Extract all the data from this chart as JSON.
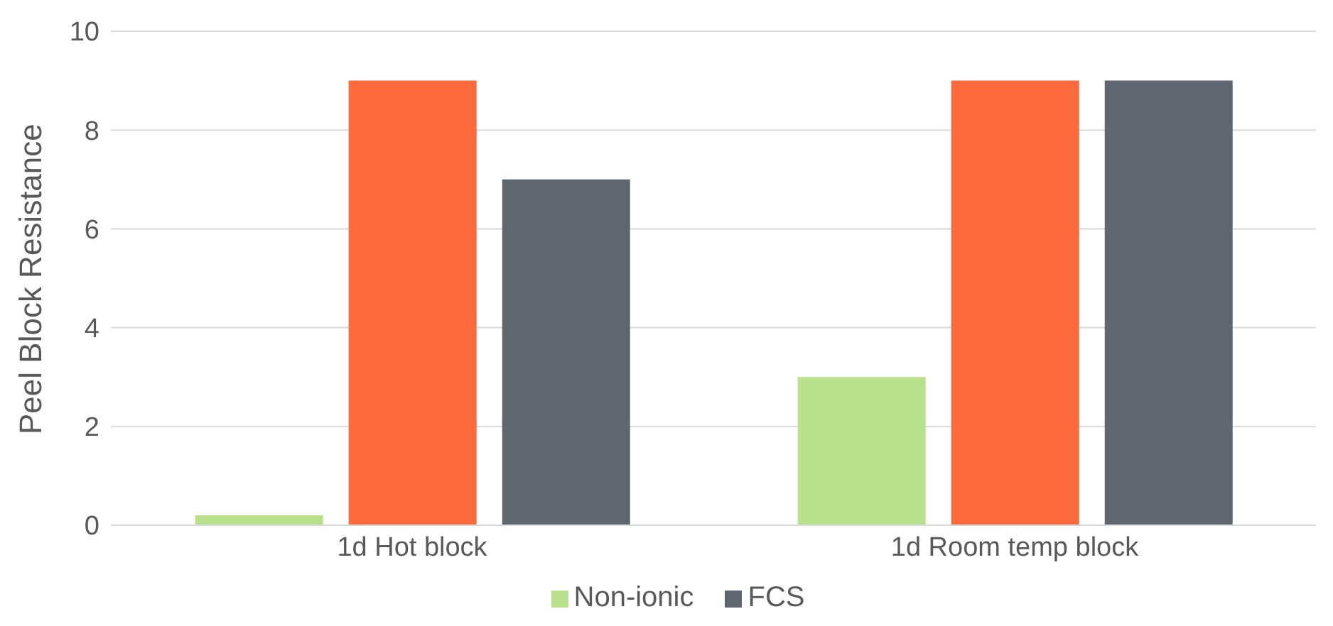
{
  "chart_data": {
    "type": "bar",
    "ylabel": "Peel Block Resistance",
    "categories": [
      "1d Hot block",
      "1d Room temp block"
    ],
    "series": [
      {
        "name": "Non-ionic",
        "color": "#b9e08b",
        "values": [
          0.2,
          3
        ]
      },
      {
        "color": "#ff6a3d",
        "values": [
          9,
          9
        ]
      },
      {
        "name": "FCS",
        "color": "#5f6670",
        "values": [
          7,
          9
        ]
      }
    ],
    "ylim": [
      0,
      10
    ],
    "yticks": [
      0,
      2,
      4,
      6,
      8,
      10
    ],
    "grid": "y",
    "legend": "bottom"
  }
}
